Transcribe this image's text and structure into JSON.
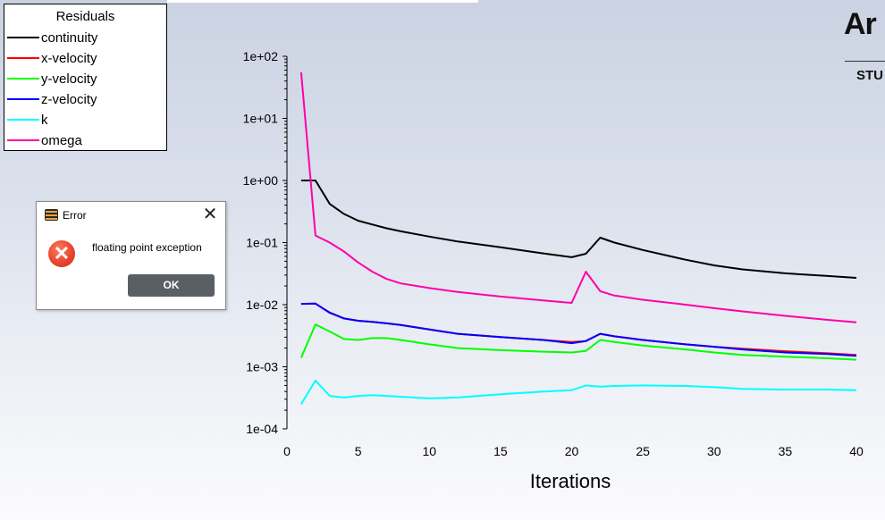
{
  "legend": {
    "title": "Residuals",
    "items": [
      {
        "label": "continuity",
        "color": "#000000"
      },
      {
        "label": "x-velocity",
        "color": "#ff0000"
      },
      {
        "label": "y-velocity",
        "color": "#00ff00"
      },
      {
        "label": "z-velocity",
        "color": "#0000ff"
      },
      {
        "label": "k",
        "color": "#00ffff"
      },
      {
        "label": "omega",
        "color": "#ff00a8"
      }
    ]
  },
  "brand": {
    "logo": "Ar",
    "subtitle": "STU"
  },
  "dialog": {
    "title": "Error",
    "message": "floating point exception",
    "ok_label": "OK",
    "close_glyph": "✕",
    "error_glyph": "✕",
    "app_icon": "app-icon",
    "error_icon": "error-icon"
  },
  "chart_data": {
    "type": "line",
    "xlabel": "Iterations",
    "ylabel": "",
    "y_scale": "log",
    "xlim": [
      0,
      40
    ],
    "ylim": [
      0.0001,
      100
    ],
    "x_ticks": [
      0,
      5,
      10,
      15,
      20,
      25,
      30,
      35,
      40
    ],
    "y_ticks": [
      "1e-04",
      "1e-03",
      "1e-02",
      "1e-01",
      "1e+00",
      "1e+01",
      "1e+02"
    ],
    "x": [
      1,
      2,
      3,
      4,
      5,
      6,
      7,
      8,
      10,
      12,
      15,
      18,
      20,
      21,
      22,
      23,
      25,
      28,
      30,
      32,
      35,
      38,
      40
    ],
    "series": [
      {
        "name": "continuity",
        "color": "#000000",
        "values": [
          1.0,
          1.0,
          0.42,
          0.29,
          0.225,
          0.195,
          0.17,
          0.152,
          0.125,
          0.104,
          0.084,
          0.067,
          0.058,
          0.066,
          0.12,
          0.1,
          0.076,
          0.053,
          0.043,
          0.037,
          0.032,
          0.029,
          0.027
        ]
      },
      {
        "name": "x-velocity",
        "color": "#ff0000",
        "values": [
          0.0103,
          0.0104,
          0.0075,
          0.006,
          0.0055,
          0.0053,
          0.005,
          0.0047,
          0.004,
          0.0034,
          0.003,
          0.0027,
          0.0025,
          0.0026,
          0.0034,
          0.0031,
          0.0027,
          0.0023,
          0.0021,
          0.00195,
          0.00178,
          0.00165,
          0.00155
        ]
      },
      {
        "name": "y-velocity",
        "color": "#00ff00",
        "values": [
          0.0014,
          0.0048,
          0.0037,
          0.0028,
          0.0027,
          0.0029,
          0.0029,
          0.0027,
          0.0023,
          0.002,
          0.00185,
          0.00175,
          0.0017,
          0.0018,
          0.0027,
          0.0025,
          0.0022,
          0.0019,
          0.0017,
          0.00155,
          0.00145,
          0.00137,
          0.0013
        ]
      },
      {
        "name": "z-velocity",
        "color": "#0000ff",
        "values": [
          0.0103,
          0.0104,
          0.0074,
          0.006,
          0.0055,
          0.0053,
          0.005,
          0.0047,
          0.004,
          0.0034,
          0.003,
          0.0027,
          0.0024,
          0.0026,
          0.0034,
          0.0031,
          0.0027,
          0.0023,
          0.0021,
          0.0019,
          0.0017,
          0.0016,
          0.0015
        ]
      },
      {
        "name": "k",
        "color": "#00ffff",
        "values": [
          0.00025,
          0.0006,
          0.00034,
          0.00032,
          0.00034,
          0.00035,
          0.00034,
          0.00033,
          0.00031,
          0.00032,
          0.00036,
          0.0004,
          0.00042,
          0.0005,
          0.00048,
          0.00049,
          0.0005,
          0.00049,
          0.00047,
          0.00044,
          0.00043,
          0.00043,
          0.00042
        ]
      },
      {
        "name": "omega",
        "color": "#ff00a8",
        "values": [
          55,
          0.13,
          0.1,
          0.072,
          0.048,
          0.034,
          0.026,
          0.022,
          0.0185,
          0.016,
          0.0135,
          0.0117,
          0.0107,
          0.034,
          0.0165,
          0.014,
          0.012,
          0.01,
          0.0088,
          0.0078,
          0.0066,
          0.0057,
          0.0052
        ]
      }
    ]
  }
}
